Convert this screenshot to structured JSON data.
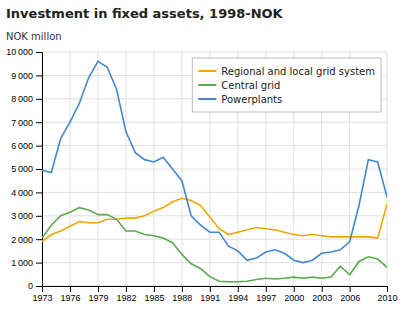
{
  "chart_data": {
    "type": "line",
    "title": "Investment in fixed assets, 1998-NOK",
    "ylabel": "NOK millon",
    "x": [
      1973,
      1974,
      1975,
      1976,
      1977,
      1978,
      1979,
      1980,
      1981,
      1982,
      1983,
      1984,
      1985,
      1986,
      1987,
      1988,
      1989,
      1990,
      1991,
      1992,
      1993,
      1994,
      1995,
      1996,
      1997,
      1998,
      1999,
      2000,
      2001,
      2002,
      2003,
      2004,
      2005,
      2006,
      2007,
      2008,
      2009,
      2010
    ],
    "series": [
      {
        "name": "Regional and local grid system",
        "color": "#f0a800",
        "values": [
          1900,
          2200,
          2350,
          2550,
          2750,
          2700,
          2700,
          2850,
          2850,
          2900,
          2900,
          3000,
          3200,
          3350,
          3600,
          3750,
          3650,
          3450,
          2950,
          2450,
          2200,
          2300,
          2400,
          2500,
          2450,
          2400,
          2300,
          2200,
          2150,
          2200,
          2150,
          2100,
          2100,
          2100,
          2100,
          2100,
          2050,
          3500
        ]
      },
      {
        "name": "Central grid",
        "color": "#5aaa50",
        "values": [
          2050,
          2600,
          3000,
          3150,
          3350,
          3250,
          3050,
          3050,
          2850,
          2350,
          2350,
          2200,
          2150,
          2050,
          1850,
          1350,
          950,
          750,
          400,
          200,
          180,
          180,
          200,
          280,
          330,
          300,
          330,
          380,
          330,
          380,
          330,
          380,
          850,
          480,
          1050,
          1250,
          1150,
          800
        ]
      },
      {
        "name": "Powerplants",
        "color": "#4488cc",
        "values": [
          4950,
          4850,
          6300,
          7000,
          7800,
          8900,
          9600,
          9350,
          8400,
          6600,
          5700,
          5400,
          5300,
          5500,
          5000,
          4500,
          3000,
          2600,
          2300,
          2300,
          1700,
          1500,
          1100,
          1200,
          1450,
          1550,
          1400,
          1100,
          1000,
          1100,
          1400,
          1450,
          1550,
          1900,
          3450,
          5400,
          5300,
          3800
        ]
      }
    ],
    "xlim": [
      1973,
      2010
    ],
    "ylim": [
      0,
      10000
    ],
    "xticks": [
      1973,
      1976,
      1979,
      1982,
      1985,
      1988,
      1991,
      1994,
      1997,
      2000,
      2003,
      2006,
      2010
    ],
    "yticks": [
      0,
      {
        "value": 1000,
        "label": "1 000"
      },
      {
        "value": 2000,
        "label": "2 000"
      },
      {
        "value": 3000,
        "label": "3 000"
      },
      {
        "value": 4000,
        "label": "4 000"
      },
      {
        "value": 5000,
        "label": "5 000"
      },
      {
        "value": 6000,
        "label": "6 000"
      },
      {
        "value": 7000,
        "label": "7 000"
      },
      {
        "value": 8000,
        "label": "8 000"
      },
      {
        "value": 9000,
        "label": "9 000"
      },
      {
        "value": 10000,
        "label": "10 000"
      }
    ],
    "grid": true,
    "legend": "upper right"
  }
}
